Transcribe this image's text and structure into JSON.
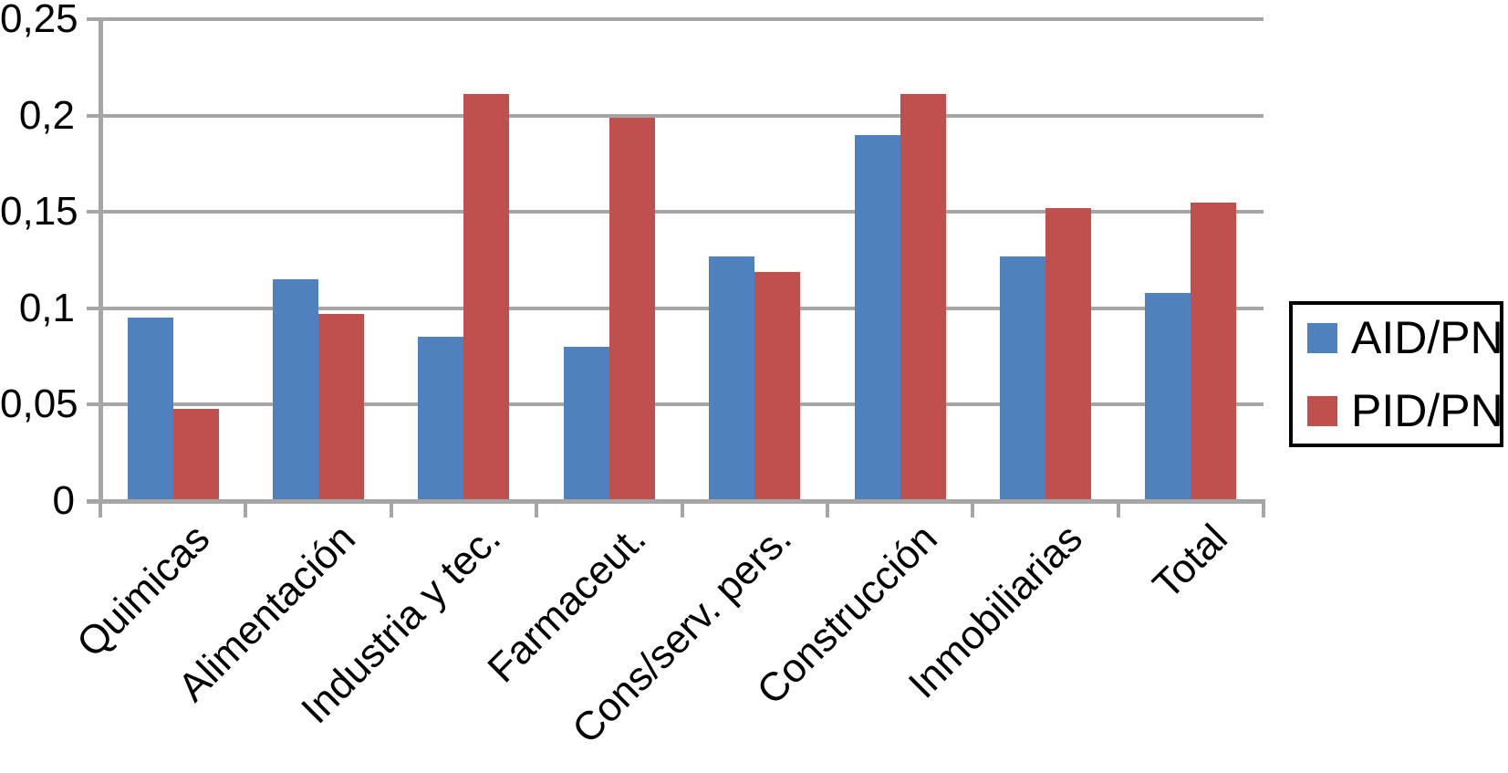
{
  "chart_data": {
    "type": "bar",
    "title": "",
    "xlabel": "",
    "ylabel": "",
    "categories": [
      "Quimicas",
      "Alimentación",
      "Industria y tec.",
      "Farmaceut.",
      "Cons/serv. pers.",
      "Construcción",
      "Inmobiliarias",
      "Total"
    ],
    "series": [
      {
        "name": "AID/PN",
        "color": "#4f81bd",
        "values": [
          0.095,
          0.115,
          0.085,
          0.08,
          0.127,
          0.19,
          0.127,
          0.108
        ]
      },
      {
        "name": "PID/PN",
        "color": "#c0504d",
        "values": [
          0.048,
          0.097,
          0.211,
          0.199,
          0.119,
          0.211,
          0.152,
          0.155
        ]
      }
    ],
    "ylim": [
      0,
      0.25
    ],
    "ytick_values": [
      0,
      0.05,
      0.1,
      0.15,
      0.2,
      0.25
    ],
    "ytick_labels": [
      "0",
      "0,05",
      "0,1",
      "0,15",
      "0,2",
      "0,25"
    ],
    "decimal_separator": ",",
    "grid": true,
    "gridline_color": "#a6a6a6",
    "axis_color": "#a6a6a6",
    "background_color": "#ffffff",
    "legend_position": "right",
    "legend_border_color": "#000000",
    "x_label_rotation_deg": -45
  }
}
